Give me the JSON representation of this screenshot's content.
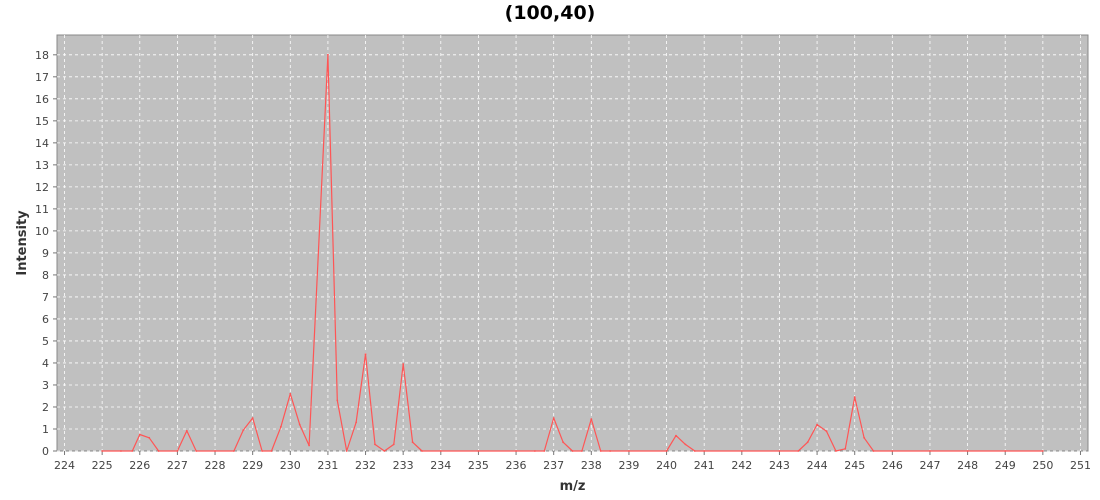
{
  "chart_data": {
    "type": "line",
    "title": "(100,40)",
    "xlabel": "m/z",
    "ylabel": "Intensity",
    "xlim": [
      223.8,
      251.2
    ],
    "ylim": [
      0,
      18.9
    ],
    "grid": true,
    "x_ticks": [
      224,
      225,
      226,
      227,
      228,
      229,
      230,
      231,
      232,
      233,
      234,
      235,
      236,
      237,
      238,
      239,
      240,
      241,
      242,
      243,
      244,
      245,
      246,
      247,
      248,
      249,
      250,
      251
    ],
    "y_ticks": [
      0,
      1,
      2,
      3,
      4,
      5,
      6,
      7,
      8,
      9,
      10,
      11,
      12,
      13,
      14,
      15,
      16,
      17,
      18
    ],
    "colors": {
      "plot_background": "#c0c0c0",
      "grid": "#ffffff",
      "series": "#ff5555"
    },
    "series": [
      {
        "name": "Intensity",
        "x": [
          225.0,
          225.5,
          225.8,
          226.0,
          226.25,
          226.5,
          227.0,
          227.25,
          227.5,
          228.0,
          228.5,
          228.75,
          229.0,
          229.25,
          229.5,
          229.75,
          230.0,
          230.25,
          230.5,
          231.0,
          231.25,
          231.5,
          231.75,
          232.0,
          232.25,
          232.5,
          232.75,
          233.0,
          233.25,
          233.5,
          234.0,
          235.0,
          236.0,
          236.5,
          236.75,
          237.0,
          237.25,
          237.5,
          237.75,
          238.0,
          238.25,
          238.5,
          239.0,
          240.0,
          240.25,
          240.5,
          240.75,
          241.0,
          242.0,
          243.0,
          243.5,
          243.75,
          244.0,
          244.25,
          244.5,
          244.75,
          245.0,
          245.25,
          245.5,
          246.0,
          247.0,
          248.0,
          249.0,
          250.0
        ],
        "values": [
          0,
          0,
          0,
          0.75,
          0.6,
          0,
          0,
          0.92,
          0,
          0,
          0,
          0.95,
          1.5,
          0,
          0,
          1.1,
          2.6,
          1.2,
          0.25,
          18.0,
          2.3,
          0,
          1.3,
          4.4,
          0.3,
          0,
          0.3,
          3.95,
          0.4,
          0,
          0,
          0,
          0,
          0,
          0,
          1.5,
          0.4,
          0,
          0,
          1.45,
          0,
          0,
          0,
          0,
          0.7,
          0.3,
          0,
          0,
          0,
          0,
          0,
          0.4,
          1.2,
          0.9,
          0,
          0.1,
          2.45,
          0.6,
          0,
          0,
          0,
          0,
          0,
          0
        ]
      }
    ]
  }
}
